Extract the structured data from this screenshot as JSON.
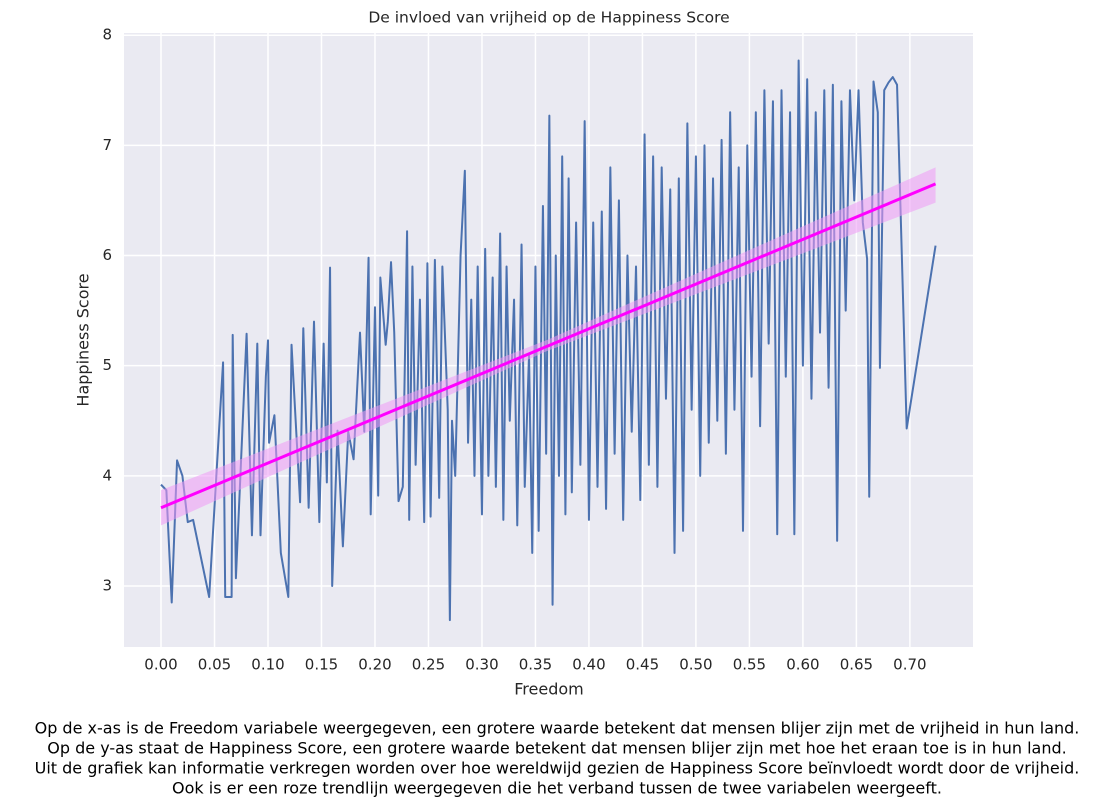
{
  "chart_data": {
    "type": "line",
    "title": "De invloed van vrijheid op de Happiness Score",
    "xlabel": "Freedom",
    "ylabel": "Happiness Score",
    "xlim": [
      -0.0346,
      0.759
    ],
    "ylim": [
      2.446,
      8.02
    ],
    "xticks": [
      {
        "value": 0,
        "label": "0.00"
      },
      0.05,
      {
        "value": 0.1,
        "label": "0.10"
      },
      0.15,
      {
        "value": 0.2,
        "label": "0.20"
      },
      0.25,
      {
        "value": 0.3,
        "label": "0.30"
      },
      0.35,
      {
        "value": 0.4,
        "label": "0.40"
      },
      0.45,
      {
        "value": 0.5,
        "label": "0.50"
      },
      0.55,
      {
        "value": 0.6,
        "label": "0.60"
      },
      0.65,
      {
        "value": 0.7,
        "label": "0.70"
      }
    ],
    "yticks": [
      3,
      4,
      5,
      6,
      7,
      8
    ],
    "grid": true,
    "background": "#eaeaf2",
    "series": [
      {
        "color": "#4c72b0",
        "x": [
          0,
          0.005,
          0.01,
          0.015,
          0.02,
          0.025,
          0.03,
          0.045,
          0.058,
          0.06,
          0.066,
          0.067,
          0.07,
          0.08,
          0.085,
          0.09,
          0.093,
          0.098,
          0.1,
          0.101,
          0.106,
          0.112,
          0.119,
          0.122,
          0.13,
          0.133,
          0.138,
          0.143,
          0.148,
          0.152,
          0.155,
          0.158,
          0.16,
          0.165,
          0.17,
          0.175,
          0.18,
          0.186,
          0.19,
          0.194,
          0.196,
          0.2,
          0.203,
          0.205,
          0.21,
          0.212,
          0.215,
          0.218,
          0.222,
          0.226,
          0.23,
          0.232,
          0.235,
          0.238,
          0.242,
          0.246,
          0.249,
          0.252,
          0.256,
          0.26,
          0.263,
          0.268,
          0.27,
          0.272,
          0.275,
          0.28,
          0.284,
          0.287,
          0.29,
          0.293,
          0.296,
          0.3,
          0.303,
          0.306,
          0.31,
          0.313,
          0.317,
          0.32,
          0.323,
          0.326,
          0.33,
          0.333,
          0.337,
          0.34,
          0.344,
          0.347,
          0.35,
          0.353,
          0.357,
          0.36,
          0.363,
          0.366,
          0.369,
          0.372,
          0.375,
          0.378,
          0.381,
          0.384,
          0.388,
          0.392,
          0.396,
          0.4,
          0.404,
          0.408,
          0.412,
          0.416,
          0.42,
          0.424,
          0.428,
          0.432,
          0.436,
          0.44,
          0.444,
          0.448,
          0.452,
          0.456,
          0.46,
          0.464,
          0.468,
          0.472,
          0.476,
          0.48,
          0.484,
          0.488,
          0.492,
          0.496,
          0.5,
          0.504,
          0.508,
          0.512,
          0.516,
          0.52,
          0.524,
          0.528,
          0.532,
          0.536,
          0.54,
          0.544,
          0.548,
          0.552,
          0.556,
          0.56,
          0.564,
          0.568,
          0.572,
          0.576,
          0.58,
          0.584,
          0.588,
          0.592,
          0.596,
          0.6,
          0.604,
          0.608,
          0.612,
          0.616,
          0.62,
          0.624,
          0.628,
          0.632,
          0.636,
          0.64,
          0.644,
          0.648,
          0.652,
          0.656,
          0.66,
          0.662,
          0.666,
          0.67,
          0.672,
          0.676,
          0.68,
          0.684,
          0.688,
          0.697,
          0.724
        ],
        "values": [
          3.92,
          3.87,
          2.85,
          4.14,
          4.0,
          3.58,
          3.6,
          2.9,
          5.03,
          2.9,
          2.9,
          5.28,
          3.07,
          5.29,
          3.46,
          5.2,
          3.46,
          4.9,
          5.23,
          4.3,
          4.55,
          3.3,
          2.9,
          5.19,
          3.76,
          5.34,
          3.71,
          5.4,
          3.58,
          5.2,
          3.94,
          5.89,
          3.0,
          4.41,
          3.36,
          4.4,
          4.15,
          5.3,
          4.4,
          5.98,
          3.65,
          5.53,
          3.82,
          5.8,
          5.19,
          5.4,
          5.94,
          5.3,
          3.77,
          3.9,
          6.22,
          3.6,
          5.9,
          4.1,
          5.6,
          3.58,
          5.93,
          3.63,
          5.96,
          3.8,
          5.9,
          4.6,
          2.69,
          4.5,
          4.0,
          6.0,
          6.77,
          4.3,
          5.6,
          4.0,
          5.9,
          3.65,
          6.06,
          4.0,
          5.8,
          3.9,
          6.2,
          3.6,
          5.9,
          4.5,
          5.6,
          3.55,
          6.1,
          3.9,
          5.1,
          3.3,
          5.9,
          3.5,
          6.45,
          4.2,
          7.27,
          2.83,
          6.0,
          4.0,
          6.9,
          3.65,
          6.7,
          3.85,
          6.3,
          4.1,
          7.22,
          3.6,
          6.3,
          3.9,
          6.4,
          3.7,
          6.8,
          4.2,
          6.5,
          3.6,
          6.0,
          4.4,
          5.9,
          3.78,
          7.1,
          4.1,
          6.9,
          3.9,
          6.8,
          4.7,
          6.6,
          3.3,
          6.7,
          3.5,
          7.2,
          4.6,
          6.9,
          4.0,
          7.0,
          4.3,
          6.7,
          4.5,
          7.05,
          4.2,
          7.3,
          4.6,
          6.8,
          3.5,
          7.0,
          4.9,
          7.3,
          4.45,
          7.5,
          5.2,
          7.4,
          3.47,
          7.5,
          4.9,
          7.3,
          3.47,
          7.77,
          5.0,
          7.6,
          4.7,
          7.3,
          5.3,
          7.5,
          4.8,
          7.55,
          3.41,
          7.4,
          5.5,
          7.5,
          6.5,
          7.5,
          6.3,
          5.97,
          3.81,
          7.58,
          7.3,
          4.98,
          7.5,
          7.57,
          7.62,
          7.55,
          4.43,
          6.09
        ]
      },
      {
        "color": "#ff00ff",
        "x": [
          0,
          0.724
        ],
        "values": [
          3.71,
          6.65
        ],
        "band_x": [
          0,
          0.36,
          0.724
        ],
        "band_lower": [
          3.55,
          5.13,
          6.48
        ],
        "band_upper": [
          3.87,
          5.23,
          6.8
        ],
        "band_color": "#ee99f5"
      }
    ],
    "caption": [
      "Op de x-as is de Freedom variabele weergegeven, een grotere waarde betekent dat mensen blijer zijn met de vrijheid in hun land.",
      "Op de y-as staat de Happiness Score, een grotere waarde betekent dat mensen blijer zijn met hoe het eraan toe is in hun land.",
      "Uit de grafiek kan informatie verkregen worden over hoe wereldwijd gezien de Happiness Score beïnvloedt wordt door de vrijheid.",
      "Ook is er een roze trendlijn weergegeven die het verband tussen de twee variabelen weergeeft."
    ]
  }
}
